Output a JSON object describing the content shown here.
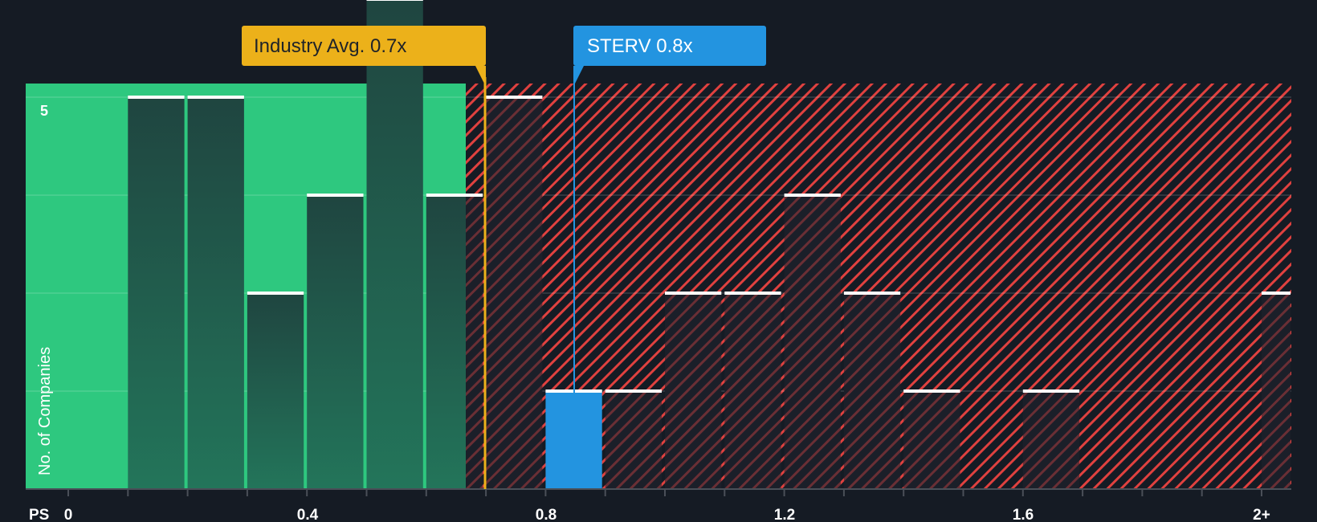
{
  "chart_data": {
    "type": "bar",
    "title": "",
    "xlabel": "PS",
    "ylabel": "No. of Companies",
    "x_tick_labels": [
      "0",
      "0.4",
      "0.8",
      "1.2",
      "1.6",
      "2+"
    ],
    "y_tick_labels": [
      "5"
    ],
    "ylim": [
      0,
      5
    ],
    "grid": true,
    "bin_width": 0.1,
    "categories": [
      "0.0-0.1",
      "0.1-0.2",
      "0.2-0.3",
      "0.3-0.4",
      "0.4-0.5",
      "0.5-0.6",
      "0.6-0.7",
      "0.7-0.8",
      "0.8-0.9",
      "0.9-1.0",
      "1.0-1.1",
      "1.1-1.2",
      "1.2-1.3",
      "1.3-1.4",
      "1.4-1.5",
      "1.5-1.6",
      "1.6-1.7",
      "1.7-1.8",
      "1.8-1.9",
      "1.9-2.0",
      "2+"
    ],
    "values": [
      0,
      4,
      4,
      2,
      3,
      5,
      3,
      4,
      1,
      1,
      2,
      2,
      3,
      2,
      1,
      0,
      1,
      0,
      0,
      0,
      2
    ],
    "highlight_bin": "0.8-0.9",
    "annotations": [
      {
        "label": "Industry Avg. 0.7x",
        "value": 0.7,
        "color": "#ecb11a"
      },
      {
        "label": "STERV 0.8x",
        "value": 0.8,
        "color": "#2394e0"
      }
    ],
    "fair_region_end": 0.667
  },
  "labels": {
    "industry": "Industry Avg. 0.7x",
    "company": "STERV 0.8x",
    "y_axis": "No. of Companies",
    "x_axis": "PS",
    "y_tick_5": "5",
    "x_ticks": [
      "0",
      "0.4",
      "0.8",
      "1.2",
      "1.6",
      "2+"
    ]
  },
  "colors": {
    "background": "#151b24",
    "green_region": "#2ec87f",
    "green_bar_top": "#1f4540",
    "green_bar_bottom": "#22715a",
    "red_hatch": "#e0413f",
    "company_bar": "#2394e0",
    "industry_line": "#ecb11a"
  }
}
